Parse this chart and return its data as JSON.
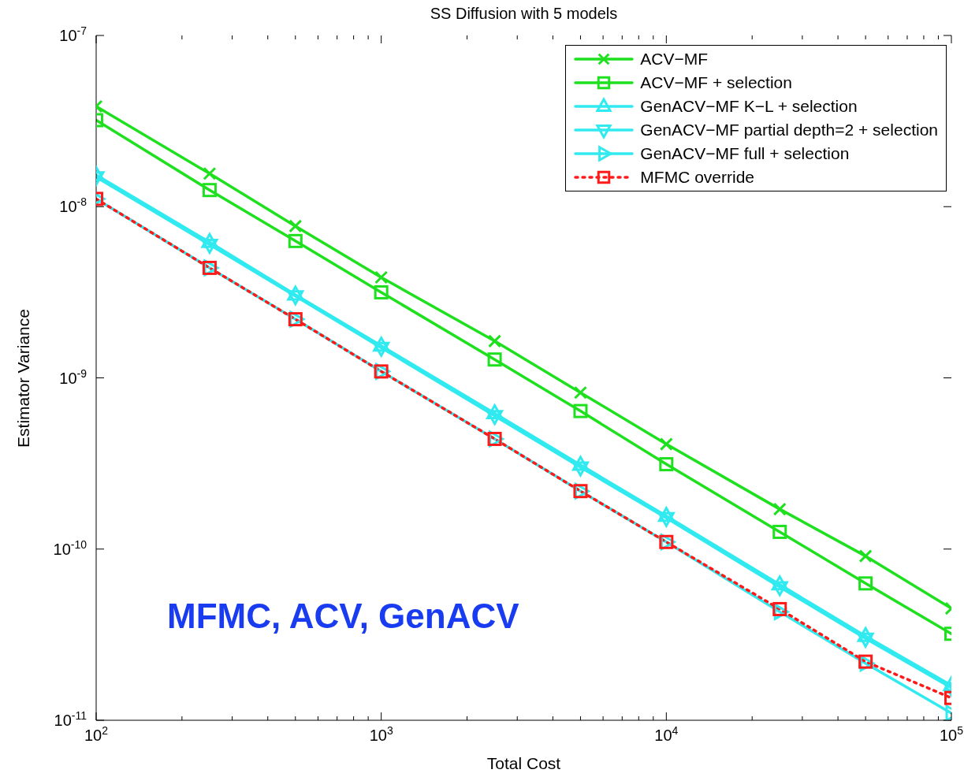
{
  "chart_data": {
    "type": "line",
    "title": "SS Diffusion with 5 models",
    "xlabel": "Total Cost",
    "ylabel": "Estimator Variance",
    "annotations": [
      "MFMC, ACV, GenACV"
    ],
    "x": [
      100,
      250,
      500,
      1000,
      2500,
      5000,
      10000,
      25000,
      50000,
      100000
    ],
    "series": [
      {
        "name": "ACV−MF",
        "color": "#1ee01e",
        "marker": "cross",
        "line_style": "solid",
        "values": [
          3.85e-08,
          1.56e-08,
          7.7e-09,
          3.86e-09,
          1.64e-09,
          8.2e-10,
          4.1e-10,
          1.71e-10,
          9.1e-11,
          4.5e-11
        ]
      },
      {
        "name": "ACV−MF + selection",
        "color": "#1ee01e",
        "marker": "square",
        "line_style": "solid",
        "values": [
          3.2e-08,
          1.25e-08,
          6.3e-09,
          3.16e-09,
          1.28e-09,
          6.4e-10,
          3.13e-10,
          1.26e-10,
          6.3e-11,
          3.2e-11
        ]
      },
      {
        "name": "GenACV−MF K−L + selection",
        "color": "#30eaf0",
        "marker": "triangle-up",
        "line_style": "solid",
        "values": [
          1.53e-08,
          6.2e-09,
          3.06e-09,
          1.54e-09,
          6.2e-10,
          3.1e-10,
          1.56e-10,
          6.2e-11,
          3.1e-11,
          1.6e-11
        ]
      },
      {
        "name": "GenACV−MF partial depth=2 + selection",
        "color": "#30eaf0",
        "marker": "triangle-down",
        "line_style": "solid",
        "values": [
          1.49e-08,
          6e-09,
          3e-09,
          1.5e-09,
          6e-10,
          3e-10,
          1.52e-10,
          6e-11,
          3e-11,
          1.55e-11
        ]
      },
      {
        "name": "GenACV−MF full + selection",
        "color": "#30eaf0",
        "marker": "triangle-right",
        "line_style": "solid",
        "values": [
          1.11e-08,
          4.39e-09,
          2.2e-09,
          1.09e-09,
          4.4e-10,
          2.18e-10,
          1.1e-10,
          4.3e-11,
          2.15e-11,
          1.1e-11
        ]
      },
      {
        "name": "MFMC override",
        "color": "#ff1a1a",
        "marker": "square",
        "line_style": "dotted",
        "values": [
          1.11e-08,
          4.39e-09,
          2.2e-09,
          1.09e-09,
          4.4e-10,
          2.18e-10,
          1.1e-10,
          4.46e-11,
          2.2e-11,
          1.35e-11
        ]
      }
    ],
    "log": "xy",
    "xlim": [
      100,
      100000
    ],
    "xticks": [
      {
        "value": 100,
        "label": "10$^{2}$"
      },
      {
        "value": 200,
        "label": null
      },
      {
        "value": 300,
        "label": null
      },
      {
        "value": 400,
        "label": null
      },
      {
        "value": 500,
        "label": null
      },
      {
        "value": 600,
        "label": null
      },
      {
        "value": 700,
        "label": null
      },
      {
        "value": 800,
        "label": null
      },
      {
        "value": 900,
        "label": null
      },
      {
        "value": 1000,
        "label": "10$^{3}$"
      },
      {
        "value": 2000,
        "label": null
      },
      {
        "value": 3000,
        "label": null
      },
      {
        "value": 4000,
        "label": null
      },
      {
        "value": 5000,
        "label": null
      },
      {
        "value": 6000,
        "label": null
      },
      {
        "value": 7000,
        "label": null
      },
      {
        "value": 8000,
        "label": null
      },
      {
        "value": 9000,
        "label": null
      },
      {
        "value": 10000,
        "label": "10$^{4}$"
      },
      {
        "value": 20000,
        "label": null
      },
      {
        "value": 30000,
        "label": null
      },
      {
        "value": 40000,
        "label": null
      },
      {
        "value": 50000,
        "label": null
      },
      {
        "value": 60000,
        "label": null
      },
      {
        "value": 70000,
        "label": null
      },
      {
        "value": 80000,
        "label": null
      },
      {
        "value": 90000,
        "label": null
      },
      {
        "value": 100000,
        "label": "10$^{5}$"
      }
    ],
    "ylim": [
      1e-11,
      1e-07
    ],
    "yticks": [
      {
        "value": 1e-11,
        "label": "10$^{-11}$"
      },
      {
        "value": 1e-10,
        "label": "10$^{-10}$"
      },
      {
        "value": 1e-09,
        "label": "10$^{-9}$"
      },
      {
        "value": 1e-08,
        "label": "10$^{-8}$"
      },
      {
        "value": 1e-07,
        "label": "10$^{-7}$"
      }
    ],
    "grid": false,
    "legend": "top right"
  }
}
